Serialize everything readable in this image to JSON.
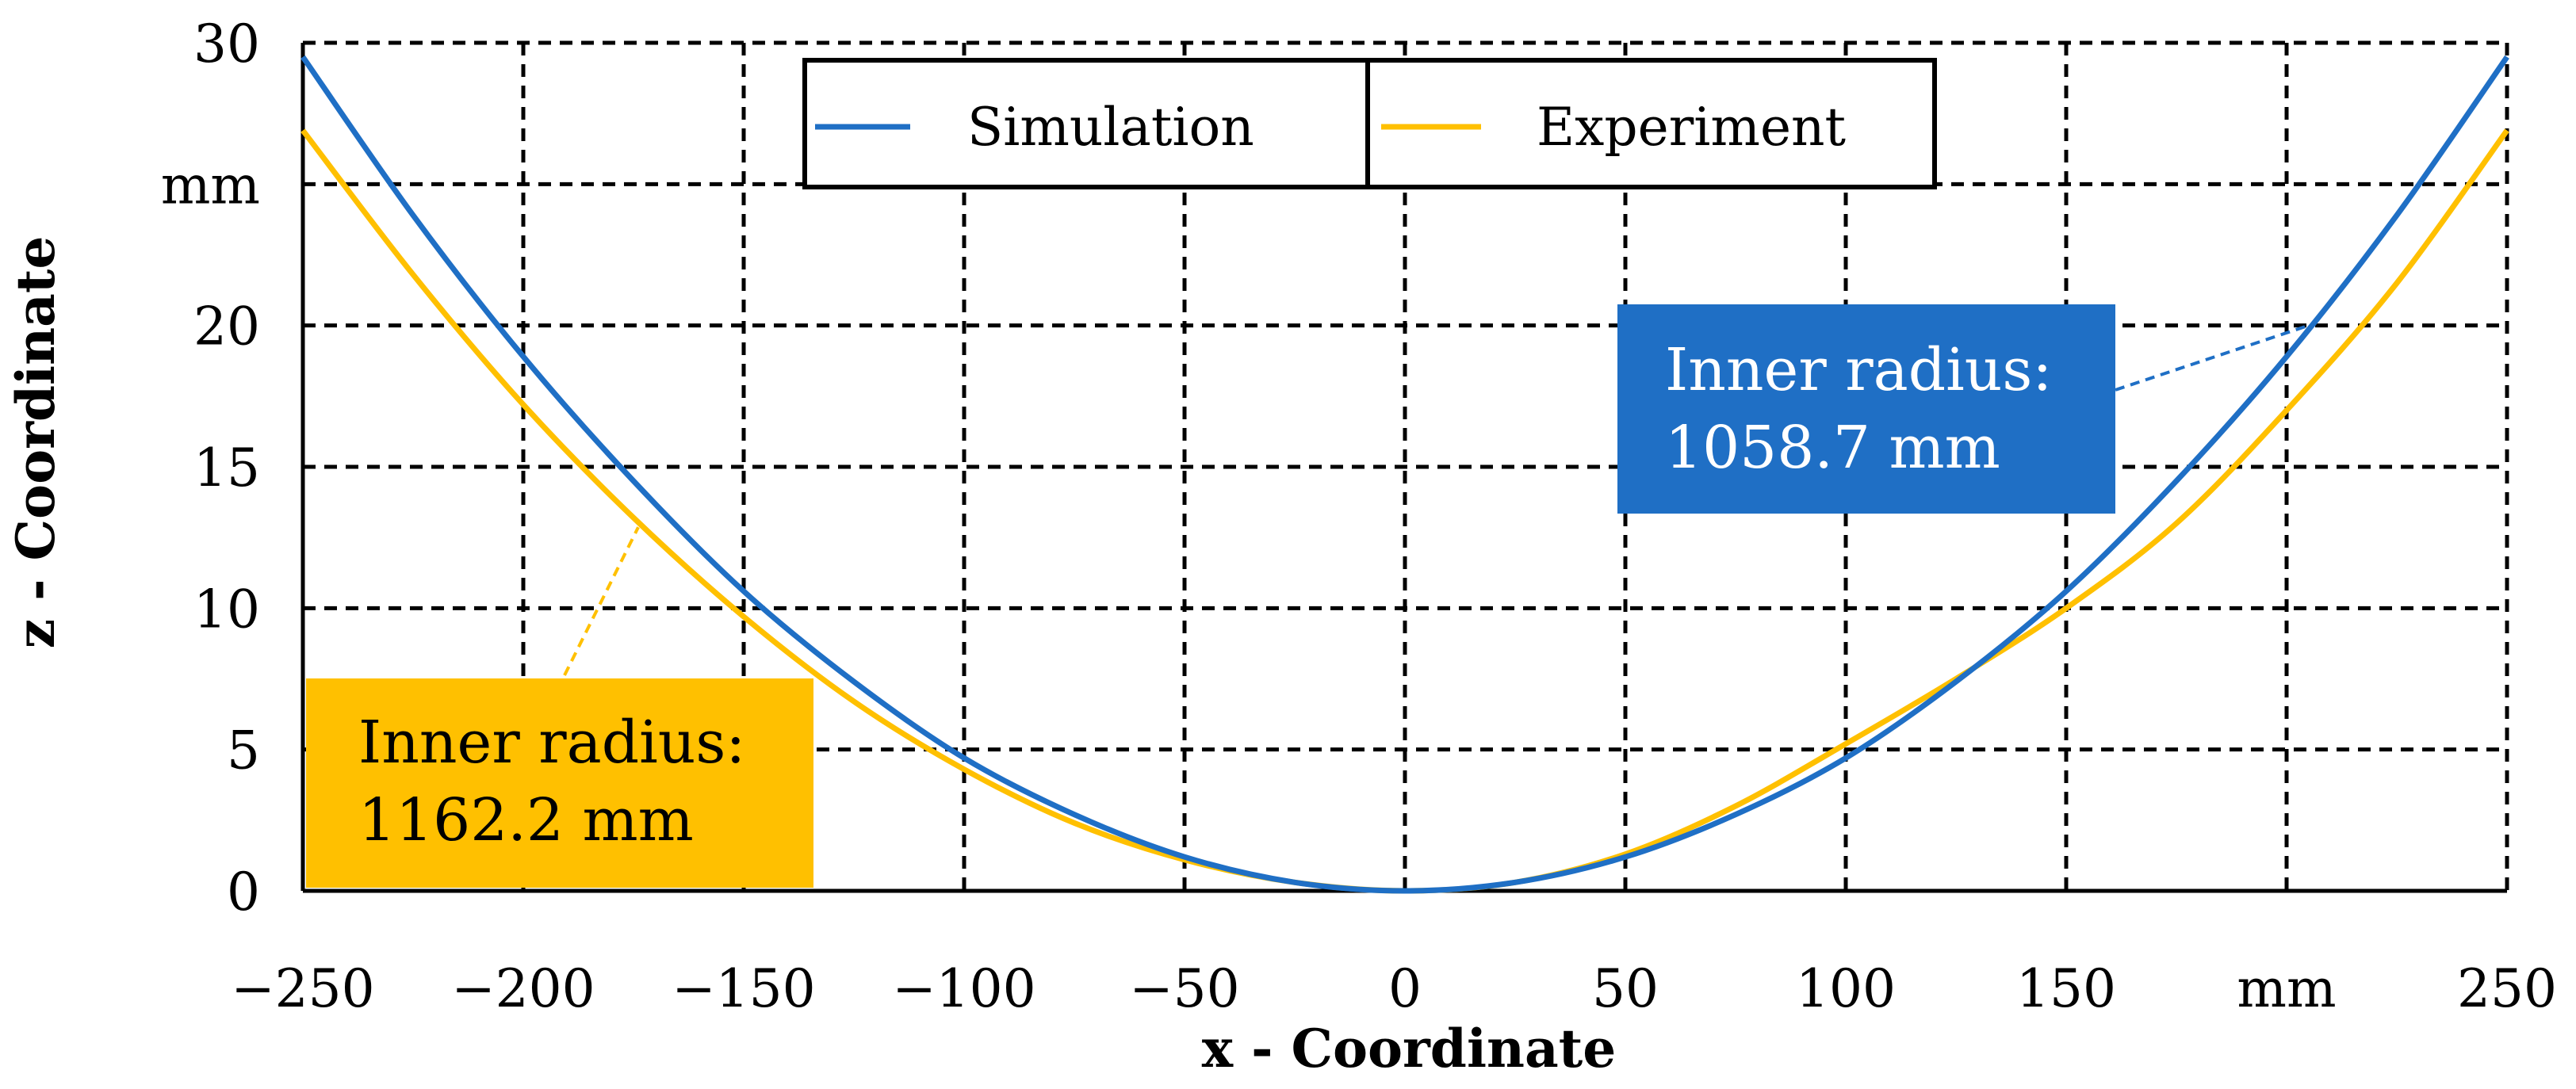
{
  "chart_data": {
    "type": "line",
    "title": "",
    "xlabel": "x - Coordinate",
    "ylabel": "z - Coordinate",
    "x_unit": "mm",
    "y_unit": "mm",
    "xlim": [
      -250,
      250
    ],
    "ylim": [
      0,
      30
    ],
    "x_ticks": [
      -250,
      -200,
      -150,
      -100,
      -50,
      0,
      50,
      100,
      150,
      200,
      250
    ],
    "y_ticks": [
      0,
      5,
      10,
      15,
      20,
      25,
      30
    ],
    "x_tick_labels": [
      "−250",
      "−200",
      "−150",
      "−100",
      "−50",
      "0",
      "50",
      "100",
      "150",
      "mm",
      "250"
    ],
    "y_tick_labels": [
      "0",
      "5",
      "10",
      "15",
      "20",
      "mm",
      "30"
    ],
    "grid": true,
    "legend_position": "top-center",
    "series": [
      {
        "name": "Simulation",
        "color": "#1f6fc5",
        "x": [
          -250,
          -225,
          -200,
          -175,
          -150,
          -125,
          -100,
          -75,
          -50,
          -25,
          0,
          25,
          50,
          75,
          100,
          125,
          150,
          175,
          200,
          225,
          250
        ],
        "y": [
          29.5,
          23.9,
          18.9,
          14.5,
          10.6,
          7.4,
          4.7,
          2.7,
          1.2,
          0.3,
          0,
          0.3,
          1.2,
          2.7,
          4.7,
          7.4,
          10.6,
          14.5,
          18.9,
          23.9,
          29.5
        ]
      },
      {
        "name": "Experiment",
        "color": "#ffc000",
        "x": [
          -250,
          -225,
          -200,
          -175,
          -150,
          -125,
          -100,
          -75,
          -50,
          -25,
          0,
          25,
          50,
          75,
          100,
          125,
          150,
          175,
          200,
          225,
          250
        ],
        "y": [
          26.9,
          21.8,
          17.2,
          13.2,
          9.7,
          6.7,
          4.3,
          2.4,
          1.1,
          0.3,
          0,
          0.3,
          1.3,
          3.0,
          5.2,
          7.5,
          10.0,
          13.0,
          17.0,
          21.5,
          26.9
        ]
      }
    ],
    "annotations": [
      {
        "series": "Simulation",
        "line1": "Inner radius:",
        "line2": "1058.7 mm",
        "color": "#1f6fc5",
        "text_color": "#ffffff",
        "target_x": 205,
        "target_z": 20
      },
      {
        "series": "Experiment",
        "line1": "Inner radius:",
        "line2": "1162.2 mm",
        "color": "#ffc000",
        "text_color": "#000000",
        "target_x": -175,
        "target_z": 13.2
      }
    ]
  }
}
